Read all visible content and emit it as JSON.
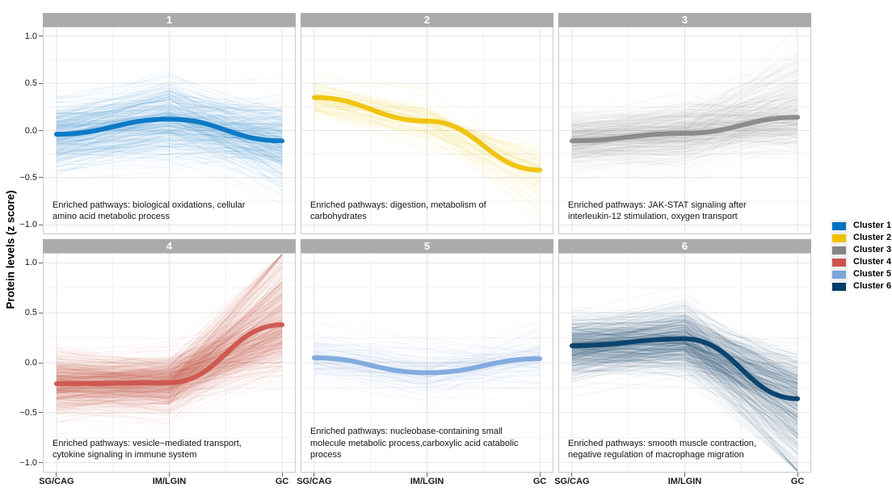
{
  "chart_data": {
    "type": "line",
    "description": "Faceted protein trajectory plot: many per-protein z-score lines plus a thick mean trend per cluster across three disease stages",
    "categories": [
      "SG/CAG",
      "IM/LGIN",
      "GC"
    ],
    "ylabel": "Protein levels (z score)",
    "ylim": [
      -1.1,
      1.1
    ],
    "yticks": [
      "1.0",
      "0.5",
      "0.0",
      "−0.5",
      "−1.0"
    ],
    "ytick_values": [
      1.0,
      0.5,
      0.0,
      -0.5,
      -1.0
    ],
    "grid": true,
    "panels": [
      {
        "id": "1",
        "cluster": "Cluster 1",
        "color": "#0073C2",
        "mean": [
          -0.04,
          0.12,
          -0.11
        ],
        "annotation": "Enriched pathways: biological oxidations, cellular amino acid metabolic process"
      },
      {
        "id": "2",
        "cluster": "Cluster 2",
        "color": "#EFC000",
        "mean": [
          0.35,
          0.1,
          -0.42
        ],
        "annotation": "Enriched pathways: digestion, metabolism of carbohydrates"
      },
      {
        "id": "3",
        "cluster": "Cluster 3",
        "color": "#868686",
        "mean": [
          -0.11,
          -0.03,
          0.14
        ],
        "annotation": "Enriched pathways: JAK-STAT signaling after interleukin-12 stimulation, oxygen transport"
      },
      {
        "id": "4",
        "cluster": "Cluster 4",
        "color": "#CD534C",
        "mean": [
          -0.21,
          -0.2,
          0.38
        ],
        "annotation": "Enriched pathways: vesicle−mediated transport, cytokine signaling in immune system"
      },
      {
        "id": "5",
        "cluster": "Cluster 5",
        "color": "#7AA6DC",
        "mean": [
          0.05,
          -0.1,
          0.04
        ],
        "annotation": "Enriched pathways: nucleobase-containing small molecule metabolic process,carboxylic acid catabolic process"
      },
      {
        "id": "6",
        "cluster": "Cluster 6",
        "color": "#003C67",
        "mean": [
          0.17,
          0.24,
          -0.36
        ],
        "annotation": "Enriched pathways: smooth muscle contraction, negative regulation of macrophage migration"
      }
    ],
    "legend": {
      "position": "right",
      "entries": [
        {
          "label": "Cluster 1",
          "color": "#0073C2"
        },
        {
          "label": "Cluster 2",
          "color": "#EFC000"
        },
        {
          "label": "Cluster 3",
          "color": "#868686"
        },
        {
          "label": "Cluster 4",
          "color": "#CD534C"
        },
        {
          "label": "Cluster 5",
          "color": "#7AA6DC"
        },
        {
          "label": "Cluster 6",
          "color": "#003C67"
        }
      ]
    },
    "style": {
      "strip_bg": "#ABABAB",
      "strip_text": "#FFFFFF",
      "grid_major": "#E4E4E4",
      "grid_minor": "#F2F2F2",
      "panel_border": "#C9C9C9",
      "axis_text": "#1A1A1A",
      "legend_key_bg": "#EFEFEF"
    }
  }
}
